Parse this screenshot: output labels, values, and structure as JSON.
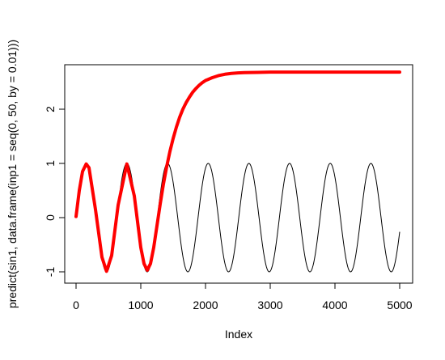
{
  "chart_data": {
    "type": "line",
    "title": "",
    "xlabel": "Index",
    "ylabel": "predict(sin1, data.frame(inp1 = seq(0, 50, by = 0.01)))",
    "xlim": [
      0,
      5000
    ],
    "ylim": [
      -1,
      2.7
    ],
    "x_ticks": [
      0,
      1000,
      2000,
      3000,
      4000,
      5000
    ],
    "y_ticks": [
      -1,
      0,
      1,
      2
    ],
    "grid": false,
    "legend": "none",
    "series": [
      {
        "color": "#000000",
        "style": "thin line",
        "function": "sin(x/100)",
        "x_range": [
          0,
          5001
        ],
        "values_sample": {
          "x": [
            0,
            157,
            471,
            785,
            1100,
            1414,
            2042,
            2670,
            3298,
            3927,
            4555,
            5001
          ],
          "y": [
            0,
            1,
            -1,
            1,
            -1,
            1,
            1,
            1,
            1,
            1,
            1,
            -0.26
          ]
        }
      },
      {
        "color": "#ff0000",
        "style": "thick line",
        "x": [
          0,
          50,
          100,
          157,
          200,
          300,
          400,
          471,
          550,
          650,
          785,
          900,
          1000,
          1050,
          1100,
          1150,
          1200,
          1250,
          1300,
          1350,
          1400,
          1450,
          1500,
          1550,
          1600,
          1650,
          1700,
          1750,
          1800,
          1850,
          1900,
          1950,
          2000,
          2100,
          2200,
          2300,
          2400,
          2500,
          2600,
          2800,
          3000,
          3500,
          4000,
          4500,
          5000
        ],
        "y": [
          0.02,
          0.5,
          0.85,
          0.99,
          0.92,
          0.15,
          -0.73,
          -0.99,
          -0.7,
          0.23,
          0.99,
          0.4,
          -0.55,
          -0.85,
          -0.97,
          -0.85,
          -0.55,
          -0.15,
          0.25,
          0.62,
          0.94,
          1.22,
          1.46,
          1.67,
          1.85,
          2.0,
          2.12,
          2.22,
          2.31,
          2.38,
          2.44,
          2.49,
          2.53,
          2.58,
          2.62,
          2.645,
          2.66,
          2.67,
          2.675,
          2.68,
          2.685,
          2.685,
          2.685,
          2.685,
          2.685
        ]
      }
    ]
  }
}
